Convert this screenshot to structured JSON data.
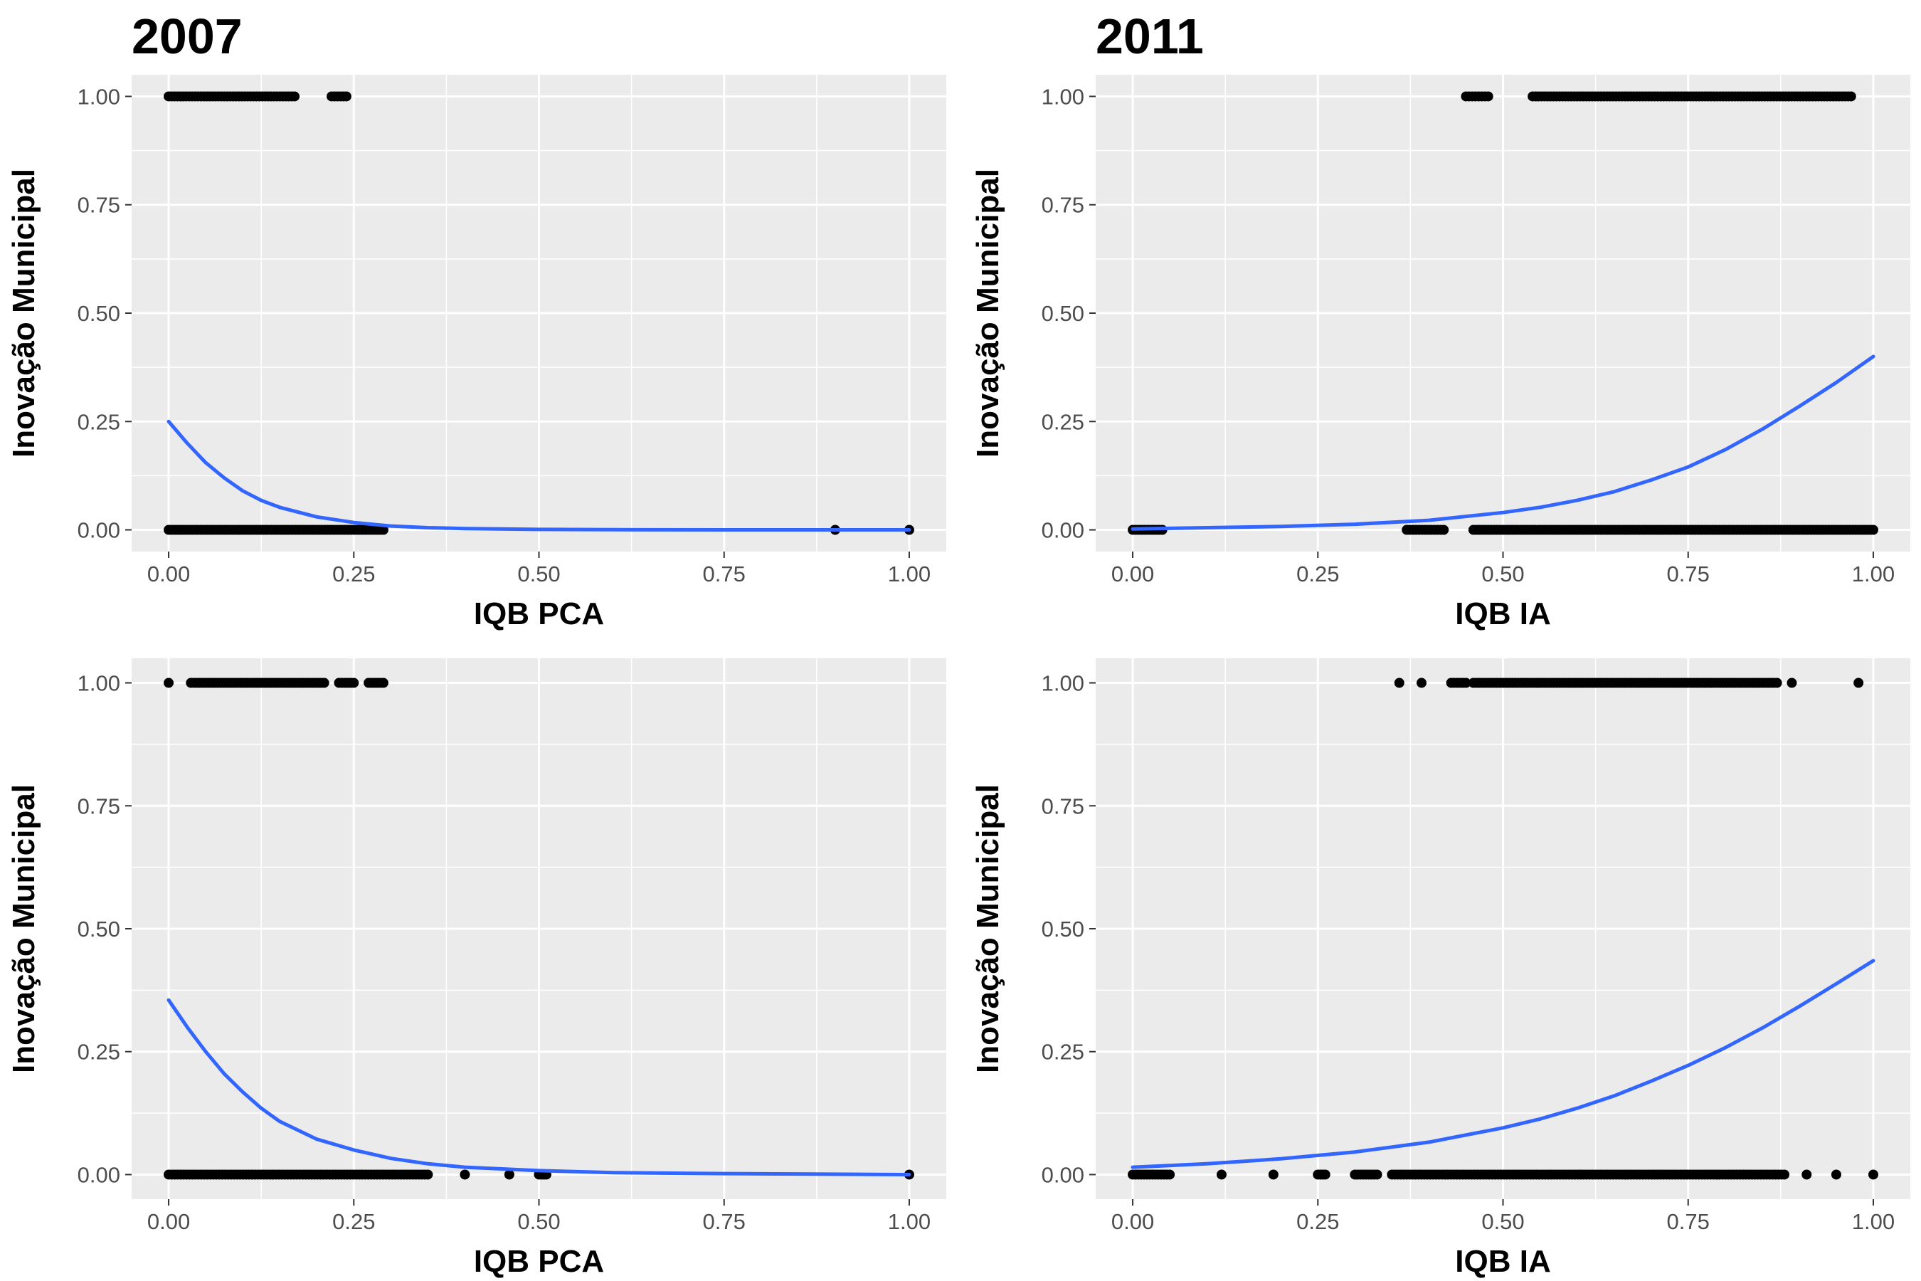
{
  "column_titles": [
    "2007",
    "2011"
  ],
  "chart_data": [
    {
      "type": "scatter",
      "title": "",
      "xlabel": "IQB PCA",
      "ylabel": "Inovação Municipal",
      "xlim": [
        0,
        1
      ],
      "ylim": [
        0,
        1
      ],
      "grid": true,
      "xticks": [
        "0.00",
        "0.25",
        "0.50",
        "0.75",
        "1.00"
      ],
      "yticks": [
        "0.00",
        "0.25",
        "0.50",
        "0.75",
        "1.00"
      ],
      "points_y1_range": [
        [
          0.0,
          0.17
        ],
        [
          0.22,
          0.24
        ]
      ],
      "points_y0_range": [
        [
          0.0,
          0.29
        ],
        [
          0.9,
          0.9
        ],
        [
          1.0,
          1.0
        ]
      ],
      "fit_curve": {
        "x": [
          0.0,
          0.025,
          0.05,
          0.075,
          0.1,
          0.125,
          0.15,
          0.2,
          0.25,
          0.3,
          0.35,
          0.4,
          0.5,
          0.6,
          0.75,
          1.0
        ],
        "y": [
          0.25,
          0.2,
          0.155,
          0.12,
          0.09,
          0.068,
          0.052,
          0.03,
          0.017,
          0.009,
          0.005,
          0.003,
          0.001,
          0.0004,
          0.0001,
          0.0
        ]
      }
    },
    {
      "type": "scatter",
      "title": "",
      "xlabel": "IQB IA",
      "ylabel": "Inovação Municipal",
      "xlim": [
        0,
        1
      ],
      "ylim": [
        0,
        1
      ],
      "grid": true,
      "xticks": [
        "0.00",
        "0.25",
        "0.50",
        "0.75",
        "1.00"
      ],
      "yticks": [
        "0.00",
        "0.25",
        "0.50",
        "0.75",
        "1.00"
      ],
      "points_y1_range": [
        [
          0.45,
          0.48
        ],
        [
          0.54,
          0.97
        ]
      ],
      "points_y0_range": [
        [
          0.0,
          0.04
        ],
        [
          0.37,
          0.42
        ],
        [
          0.46,
          1.0
        ]
      ],
      "fit_curve": {
        "x": [
          0.0,
          0.1,
          0.2,
          0.3,
          0.4,
          0.5,
          0.55,
          0.6,
          0.65,
          0.7,
          0.75,
          0.8,
          0.85,
          0.9,
          0.95,
          1.0
        ],
        "y": [
          0.002,
          0.005,
          0.008,
          0.013,
          0.022,
          0.04,
          0.052,
          0.068,
          0.088,
          0.115,
          0.145,
          0.185,
          0.232,
          0.285,
          0.34,
          0.4
        ]
      }
    },
    {
      "type": "scatter",
      "title": "",
      "xlabel": "IQB PCA",
      "ylabel": "Inovação Municipal",
      "xlim": [
        0,
        1
      ],
      "ylim": [
        0,
        1
      ],
      "grid": true,
      "xticks": [
        "0.00",
        "0.25",
        "0.50",
        "0.75",
        "1.00"
      ],
      "yticks": [
        "0.00",
        "0.25",
        "0.50",
        "0.75",
        "1.00"
      ],
      "points_y1_range": [
        [
          0.0,
          0.0
        ],
        [
          0.03,
          0.21
        ],
        [
          0.23,
          0.25
        ],
        [
          0.27,
          0.29
        ]
      ],
      "points_y0_range": [
        [
          0.0,
          0.35
        ],
        [
          0.4,
          0.4
        ],
        [
          0.46,
          0.46
        ],
        [
          0.5,
          0.51
        ],
        [
          1.0,
          1.0
        ]
      ],
      "fit_curve": {
        "x": [
          0.0,
          0.025,
          0.05,
          0.075,
          0.1,
          0.125,
          0.15,
          0.2,
          0.25,
          0.3,
          0.35,
          0.4,
          0.5,
          0.6,
          0.75,
          1.0
        ],
        "y": [
          0.355,
          0.3,
          0.25,
          0.205,
          0.168,
          0.135,
          0.108,
          0.072,
          0.05,
          0.033,
          0.022,
          0.015,
          0.008,
          0.004,
          0.002,
          0.0
        ]
      }
    },
    {
      "type": "scatter",
      "title": "",
      "xlabel": "IQB IA",
      "ylabel": "Inovação Municipal",
      "xlim": [
        0,
        1
      ],
      "ylim": [
        0,
        1
      ],
      "grid": true,
      "xticks": [
        "0.00",
        "0.25",
        "0.50",
        "0.75",
        "1.00"
      ],
      "yticks": [
        "0.00",
        "0.25",
        "0.50",
        "0.75",
        "1.00"
      ],
      "points_y1_range": [
        [
          0.36,
          0.36
        ],
        [
          0.39,
          0.39
        ],
        [
          0.43,
          0.45
        ],
        [
          0.46,
          0.87
        ],
        [
          0.89,
          0.89
        ],
        [
          0.98,
          0.98
        ]
      ],
      "points_y0_range": [
        [
          0.0,
          0.05
        ],
        [
          0.12,
          0.12
        ],
        [
          0.19,
          0.19
        ],
        [
          0.25,
          0.26
        ],
        [
          0.3,
          0.33
        ],
        [
          0.35,
          0.88
        ],
        [
          0.91,
          0.91
        ],
        [
          0.95,
          0.95
        ],
        [
          1.0,
          1.0
        ]
      ],
      "fit_curve": {
        "x": [
          0.0,
          0.1,
          0.2,
          0.3,
          0.4,
          0.5,
          0.55,
          0.6,
          0.65,
          0.7,
          0.75,
          0.8,
          0.85,
          0.9,
          0.95,
          1.0
        ],
        "y": [
          0.015,
          0.022,
          0.032,
          0.046,
          0.066,
          0.095,
          0.113,
          0.135,
          0.16,
          0.19,
          0.222,
          0.258,
          0.298,
          0.342,
          0.388,
          0.435
        ]
      }
    }
  ],
  "colors": {
    "panel_background": "#ebebeb",
    "gridline": "#ffffff",
    "points": "#000000",
    "fit_line": "#3366ff",
    "tick_text": "#4d4d4d"
  }
}
